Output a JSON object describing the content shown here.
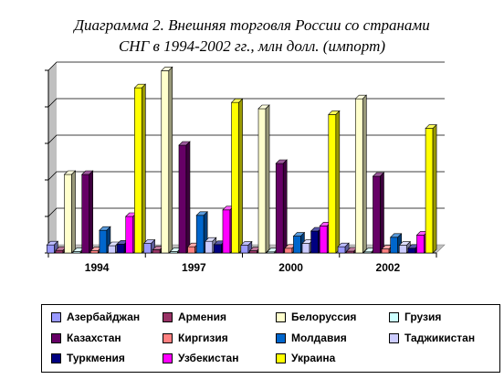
{
  "chart_data": {
    "type": "bar",
    "title": "Диаграмма 2. Внешняя торговля России со странами",
    "subtitle": "СНГ в 1994-2002 гг., млн долл. (импорт)",
    "categories": [
      "1994",
      "1997",
      "2000",
      "2002"
    ],
    "ylim": [
      0,
      5000
    ],
    "grid": true,
    "legend_position": "bottom",
    "series": [
      {
        "name": "Азербайджан",
        "color": "#9999ff",
        "values": [
          220,
          260,
          210,
          170
        ]
      },
      {
        "name": "Армения",
        "color": "#993366",
        "values": [
          70,
          90,
          60,
          50
        ]
      },
      {
        "name": "Белоруссия",
        "color": "#ffffcc",
        "values": [
          2150,
          4990,
          3950,
          4220
        ]
      },
      {
        "name": "Грузия",
        "color": "#ccffff",
        "values": [
          40,
          40,
          30,
          30
        ]
      },
      {
        "name": "Казахстан",
        "color": "#660066",
        "values": [
          2150,
          2950,
          2450,
          2100
        ]
      },
      {
        "name": "Киргизия",
        "color": "#ff8080",
        "values": [
          60,
          170,
          130,
          110
        ]
      },
      {
        "name": "Молдавия",
        "color": "#0066cc",
        "values": [
          620,
          1030,
          460,
          430
        ]
      },
      {
        "name": "Таджикистан",
        "color": "#ccccff",
        "values": [
          200,
          320,
          260,
          210
        ]
      },
      {
        "name": "Туркмения",
        "color": "#000080",
        "values": [
          240,
          230,
          600,
          130
        ]
      },
      {
        "name": "Узбекистан",
        "color": "#ff00ff",
        "values": [
          1000,
          1180,
          740,
          490
        ]
      },
      {
        "name": "Украина",
        "color": "#ffff00",
        "values": [
          4520,
          4120,
          3790,
          3410
        ]
      }
    ]
  }
}
